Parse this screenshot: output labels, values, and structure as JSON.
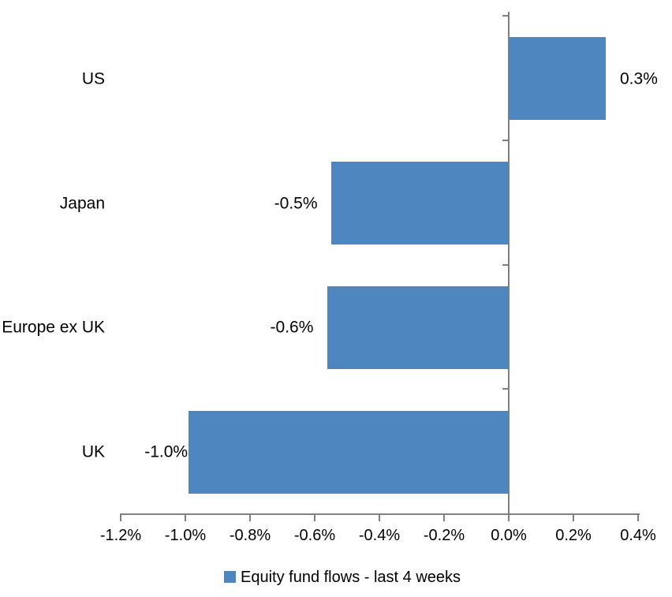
{
  "chart_data": {
    "type": "bar",
    "orientation": "horizontal",
    "categories": [
      "US",
      "Japan",
      "Europe ex UK",
      "UK"
    ],
    "series": [
      {
        "name": "Equity fund flows - last 4 weeks",
        "values": [
          0.3,
          -0.5,
          -0.6,
          -1.0
        ],
        "plot_values": [
          0.3,
          -0.55,
          -0.56,
          -0.99
        ],
        "data_labels": [
          "0.3%",
          "-0.5%",
          "-0.6%",
          "-1.0%"
        ]
      }
    ],
    "x_axis": {
      "min": -1.2,
      "max": 0.4,
      "tick_step": 0.2,
      "unit": "%",
      "tick_labels": [
        "-1.2%",
        "-1.0%",
        "-0.8%",
        "-0.6%",
        "-0.4%",
        "-0.2%",
        "0.0%",
        "0.2%",
        "0.4%"
      ]
    },
    "legend": {
      "position": "bottom",
      "entries": [
        {
          "label": "Equity fund flows - last 4 weeks",
          "color": "#4E86BF"
        }
      ]
    },
    "grid": false,
    "colors": {
      "bar": "#4E86BF",
      "axis": "#808080",
      "text": "#000000",
      "background": "#FFFFFF"
    }
  }
}
